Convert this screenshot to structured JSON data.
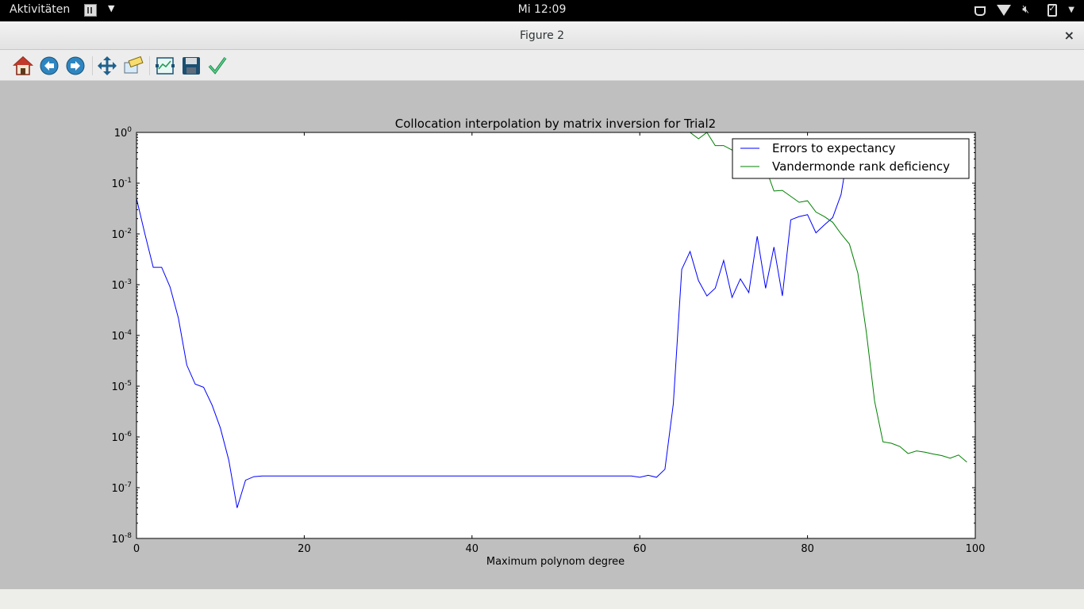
{
  "topbar": {
    "activities": "Aktivitäten",
    "clock": "Mi 12:09"
  },
  "window": {
    "title": "Figure 2",
    "close_glyph": "×"
  },
  "toolbar": {
    "buttons": [
      {
        "name": "home-icon"
      },
      {
        "name": "back-icon"
      },
      {
        "name": "forward-icon"
      },
      {
        "name": "pan-icon"
      },
      {
        "name": "zoom-icon"
      },
      {
        "name": "configure-subplots-icon"
      },
      {
        "name": "save-icon"
      },
      {
        "name": "edit-axis-icon"
      }
    ]
  },
  "chart_data": {
    "type": "line",
    "title": "Collocation interpolation by matrix inversion for Trial2",
    "xlabel": "Maximum polynom degree",
    "ylabel": "",
    "xlim": [
      0,
      100
    ],
    "ylim": [
      1e-08,
      1
    ],
    "yscale": "log",
    "xticks": [
      0,
      20,
      40,
      60,
      80,
      100
    ],
    "yticks": [
      -8,
      -7,
      -6,
      -5,
      -4,
      -3,
      -2,
      -1,
      0
    ],
    "legend_position": "top-right",
    "series": [
      {
        "name": "Errors to expectancy",
        "color": "#0000ff",
        "x": [
          0,
          1,
          2,
          3,
          4,
          5,
          6,
          7,
          8,
          9,
          10,
          11,
          12,
          13,
          14,
          15,
          16,
          18,
          20,
          25,
          30,
          35,
          40,
          45,
          50,
          55,
          59,
          60,
          61,
          62,
          63,
          64,
          65,
          66,
          67,
          68,
          69,
          70,
          71,
          72,
          73,
          74,
          75,
          76,
          77,
          78,
          79,
          80,
          81,
          82,
          83,
          84,
          85
        ],
        "y": [
          0.05,
          0.01,
          0.0022,
          0.0022,
          0.0009,
          0.00022,
          2.6e-05,
          1.1e-05,
          9.5e-06,
          4.3e-06,
          1.5e-06,
          3.5e-07,
          4e-08,
          1.4e-07,
          1.65e-07,
          1.7e-07,
          1.7e-07,
          1.7e-07,
          1.7e-07,
          1.7e-07,
          1.7e-07,
          1.7e-07,
          1.7e-07,
          1.7e-07,
          1.7e-07,
          1.7e-07,
          1.7e-07,
          1.6e-07,
          1.75e-07,
          1.6e-07,
          2.3e-07,
          4.5e-06,
          0.002,
          0.0045,
          0.0012,
          0.0006,
          0.00085,
          0.003,
          0.00056,
          0.0013,
          0.0007,
          0.009,
          0.00085,
          0.0055,
          0.0006,
          0.019,
          0.022,
          0.024,
          0.0105,
          0.015,
          0.021,
          0.06,
          0.6
        ]
      },
      {
        "name": "Vandermonde rank deficiency",
        "color": "#008000",
        "x": [
          66,
          67,
          68,
          69,
          70,
          71,
          72,
          73,
          74,
          75,
          76,
          77,
          78,
          79,
          80,
          81,
          82,
          83,
          84,
          85,
          86,
          87,
          88,
          89,
          90,
          91,
          92,
          93,
          94,
          95,
          96,
          97,
          98,
          99
        ],
        "y": [
          1,
          0.75,
          1,
          0.55,
          0.55,
          0.45,
          0.5,
          0.4,
          0.4,
          0.2,
          0.07,
          0.072,
          0.055,
          0.042,
          0.045,
          0.027,
          0.022,
          0.017,
          0.01,
          0.0063,
          0.0017,
          0.00012,
          5e-06,
          8e-07,
          7.5e-07,
          6.5e-07,
          4.7e-07,
          5.3e-07,
          5e-07,
          4.6e-07,
          4.3e-07,
          3.8e-07,
          4.4e-07,
          3.2e-07
        ]
      }
    ]
  }
}
